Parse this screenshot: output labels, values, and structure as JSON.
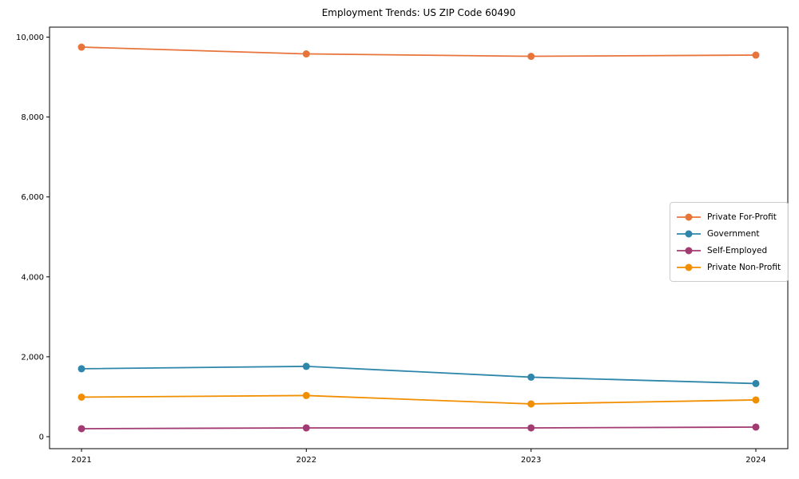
{
  "chart_data": {
    "type": "line",
    "title": "Employment Trends: US ZIP Code 60490",
    "xlabel": "",
    "ylabel": "",
    "grid": false,
    "legend_position": "center-right",
    "marker": "circle",
    "categories": [
      "2021",
      "2022",
      "2023",
      "2024"
    ],
    "series": [
      {
        "name": "Private For-Profit",
        "color": "#E8743B",
        "values": [
          9750,
          9580,
          9520,
          9550
        ]
      },
      {
        "name": "Government",
        "color": "#2E86AB",
        "values": [
          1700,
          1760,
          1490,
          1330
        ]
      },
      {
        "name": "Self-Employed",
        "color": "#A23B72",
        "values": [
          200,
          220,
          220,
          240
        ]
      },
      {
        "name": "Private Non-Profit",
        "color": "#F18F01",
        "values": [
          990,
          1030,
          820,
          920
        ]
      }
    ],
    "yticks": [
      {
        "value": 0,
        "label": "0"
      },
      {
        "value": 2000,
        "label": "2,000"
      },
      {
        "value": 4000,
        "label": "4,000"
      },
      {
        "value": 6000,
        "label": "6,000"
      },
      {
        "value": 8000,
        "label": "8,000"
      },
      {
        "value": 10000,
        "label": "10,000"
      }
    ],
    "ylim": [
      -300,
      10250
    ]
  }
}
